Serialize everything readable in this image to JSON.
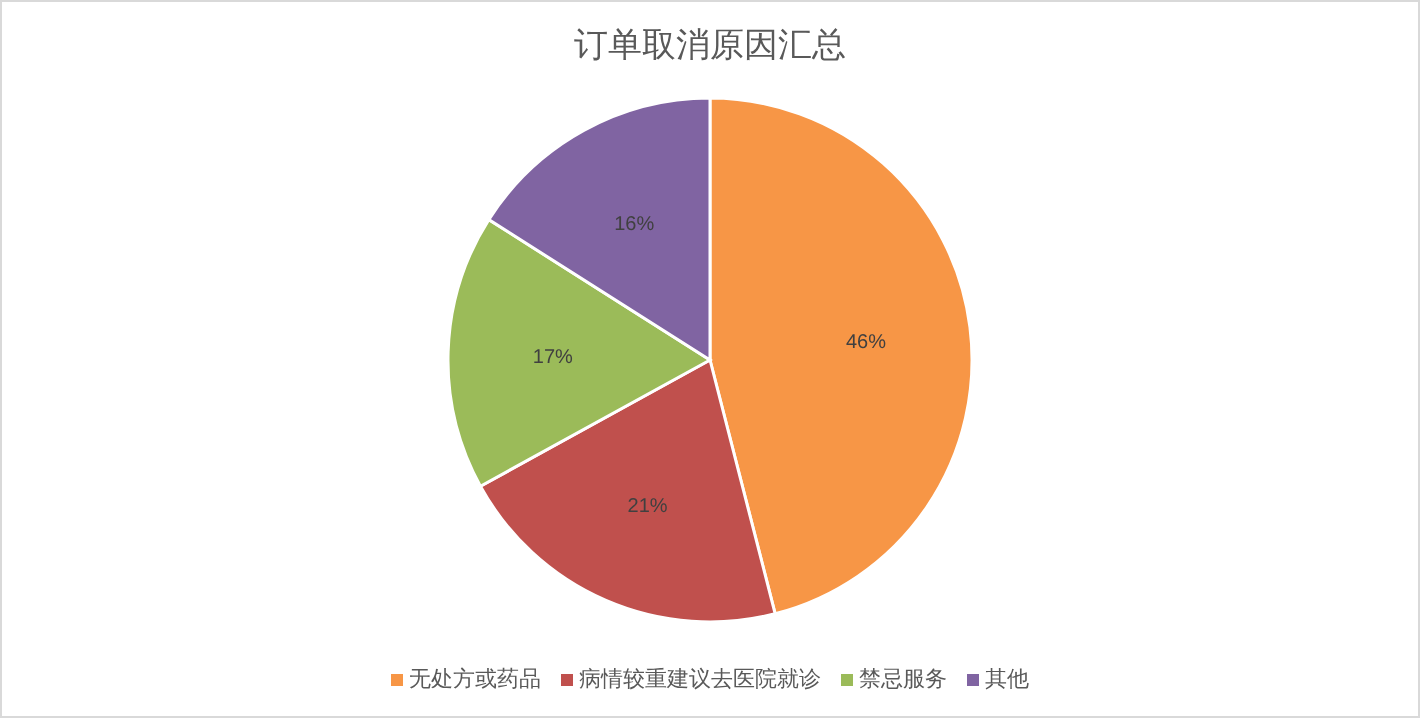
{
  "chart_data": {
    "type": "pie",
    "title": "订单取消原因汇总",
    "categories": [
      "无处方或药品",
      "病情较重建议去医院就诊",
      "禁忌服务",
      "其他"
    ],
    "values": [
      46,
      21,
      17,
      16
    ],
    "colors": [
      "#f79646",
      "#c0504d",
      "#9bbb59",
      "#8064a2"
    ],
    "value_labels": [
      "46%",
      "21%",
      "17%",
      "16%"
    ],
    "legend": "bottom"
  }
}
